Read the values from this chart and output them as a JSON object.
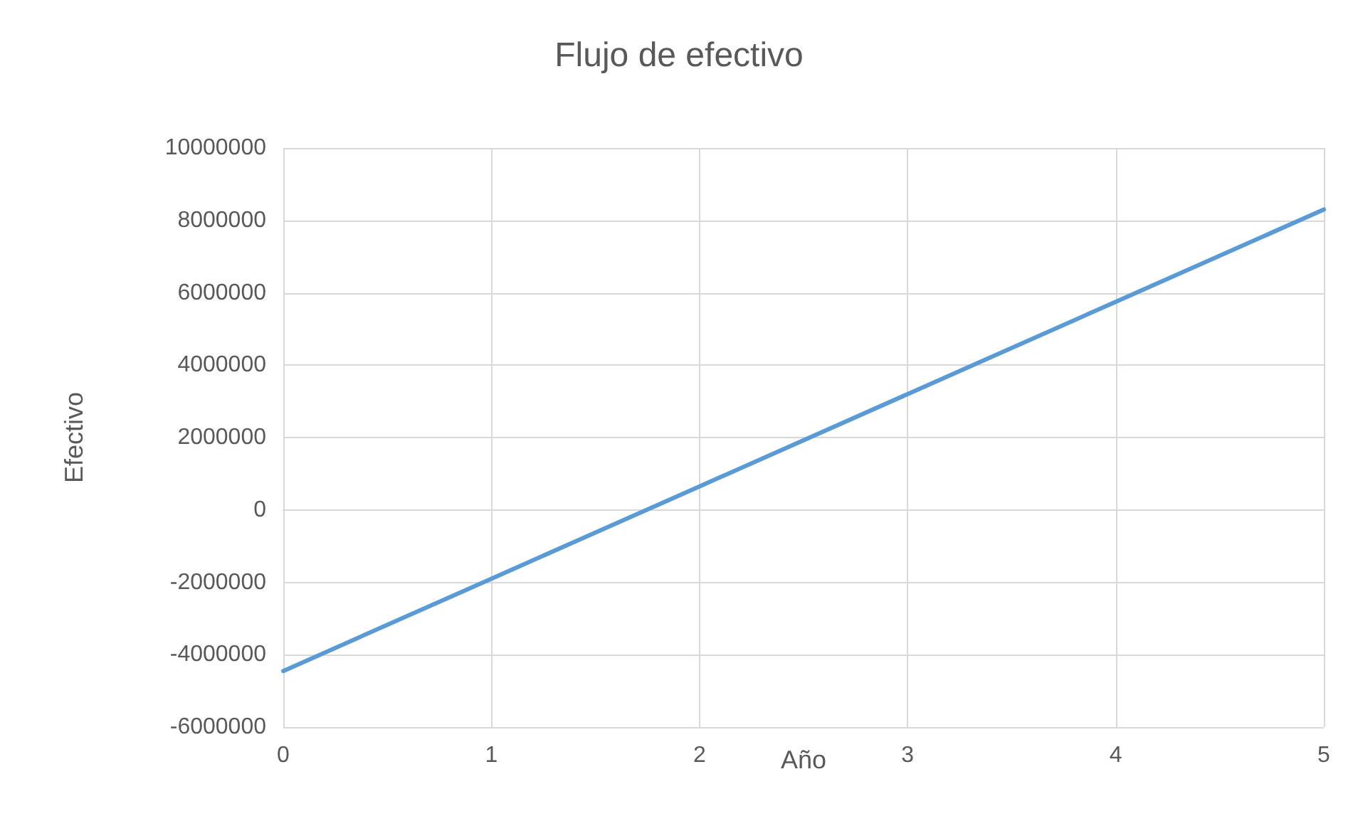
{
  "chart_data": {
    "type": "line",
    "title": "Flujo de efectivo",
    "xlabel": "Año",
    "ylabel": "Efectivo",
    "x": [
      0,
      1,
      2,
      3,
      4,
      5
    ],
    "series": [
      {
        "color": "#5b9bd5",
        "values": [
          -4450000,
          -1900000,
          650000,
          3200000,
          5750000,
          8300000
        ]
      }
    ],
    "xlim": [
      0,
      5
    ],
    "xticks": [
      0,
      1,
      2,
      3,
      4,
      5
    ],
    "ylim": [
      -6000000,
      10000000
    ],
    "yticks": [
      -6000000,
      -4000000,
      -2000000,
      0,
      2000000,
      4000000,
      6000000,
      8000000,
      10000000
    ],
    "grid": true,
    "marker": "none",
    "line_style": "solid"
  }
}
